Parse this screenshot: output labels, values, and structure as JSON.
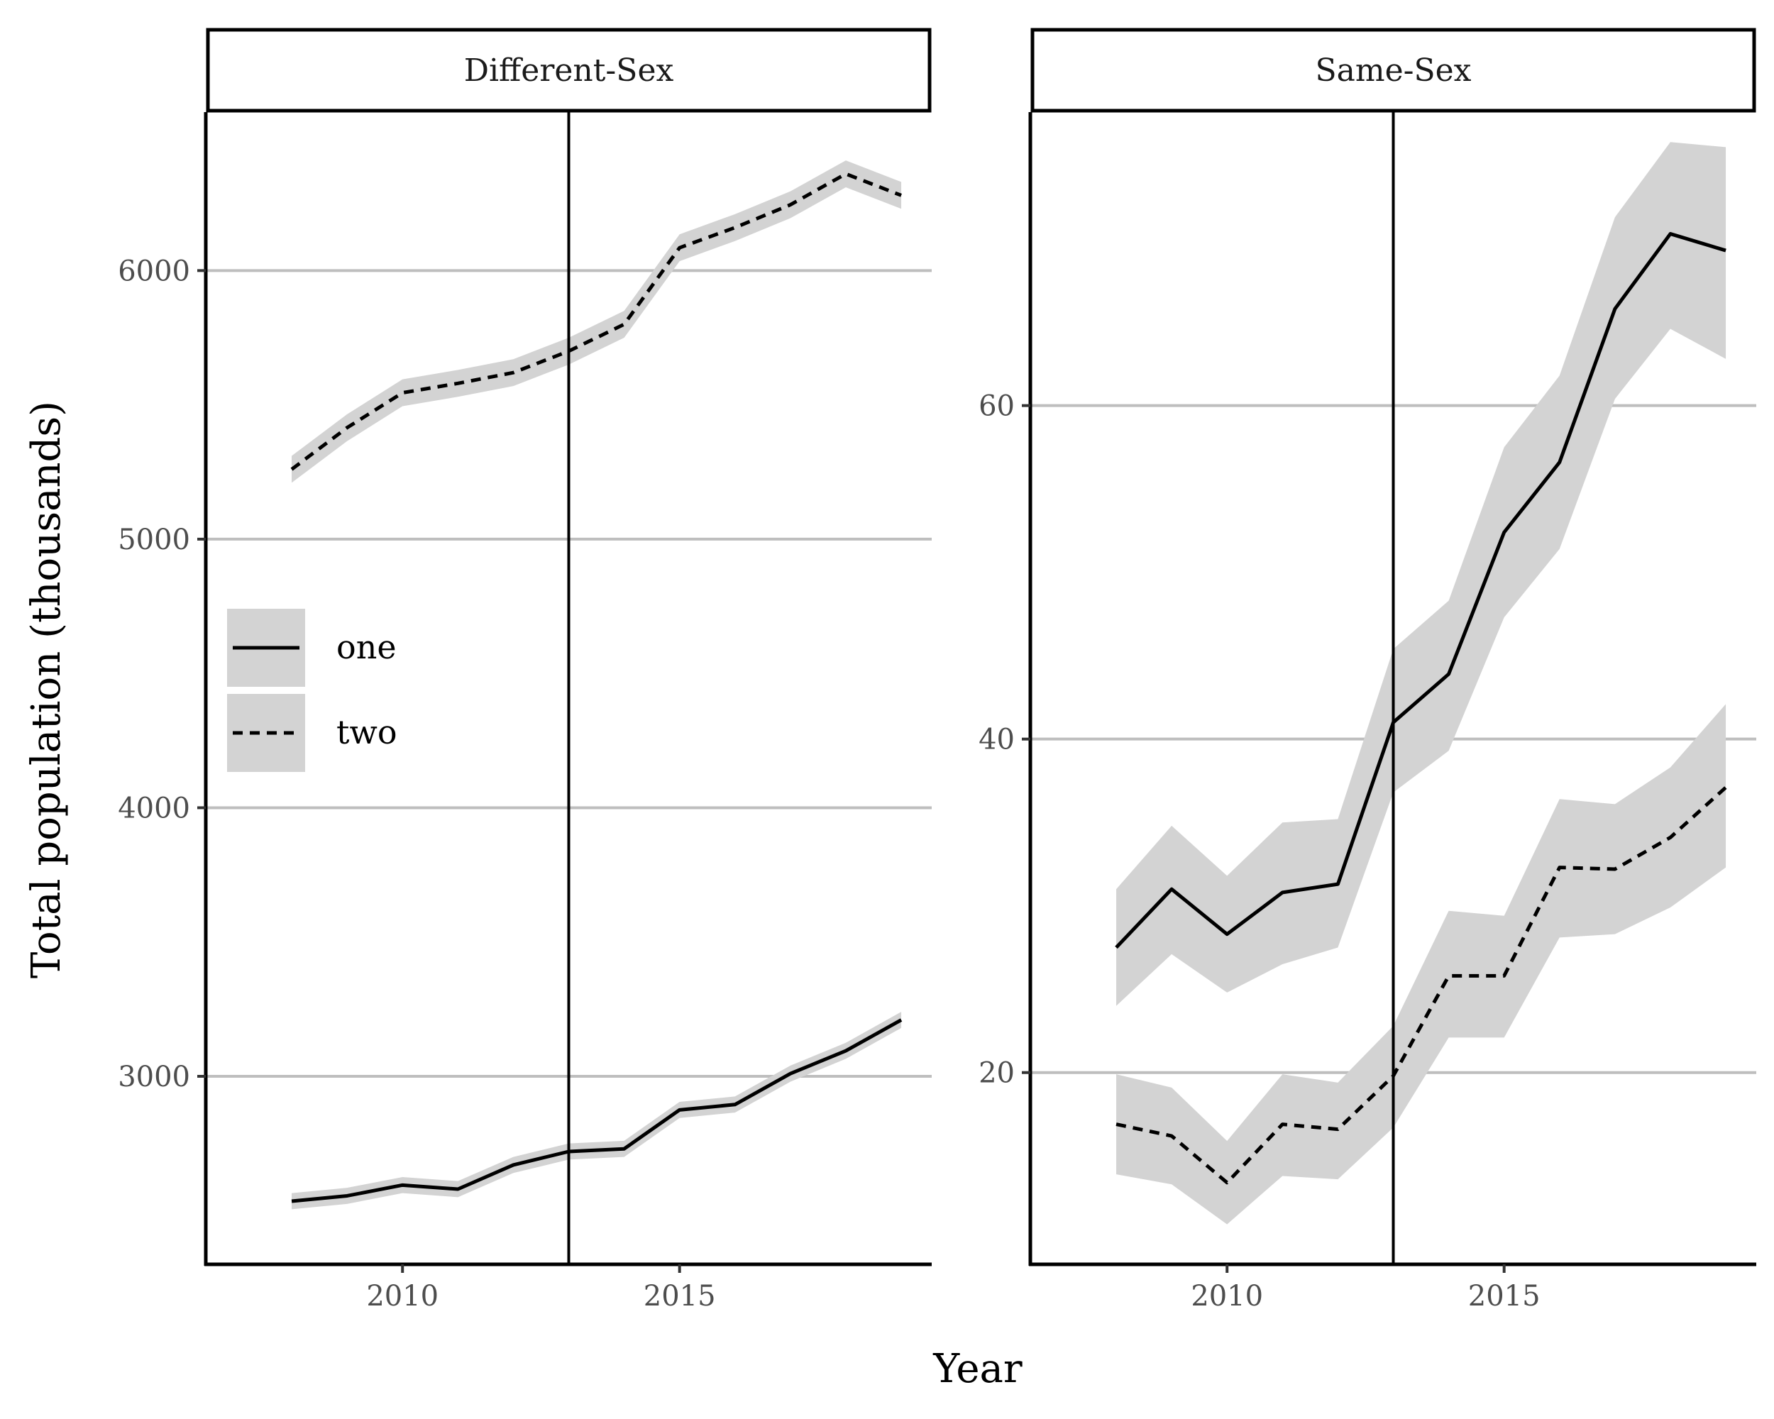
{
  "chart_data": {
    "type": "line",
    "xlabel": "Year",
    "ylabel": "Total population (thousands)",
    "reference_line_x": 2013,
    "grid": {
      "horizontal_major": true,
      "vertical": false
    },
    "band_color": "#d3d3d3",
    "line_color": "#000000",
    "legend": {
      "placement": "inside-left",
      "entries": [
        {
          "label": "one",
          "linetype": "solid"
        },
        {
          "label": "two",
          "linetype": "dashed"
        }
      ]
    },
    "panels": [
      {
        "strip": "Different-Sex",
        "xlim": [
          2006.45,
          2019.55
        ],
        "ylim": [
          2300,
          6590
        ],
        "x_ticks": [
          2010,
          2015
        ],
        "x_tick_labels": [
          "2010",
          "2015"
        ],
        "y_ticks": [
          3000,
          4000,
          5000,
          6000
        ],
        "y_tick_labels": [
          "3000",
          "4000",
          "5000",
          "6000"
        ],
        "x": [
          2008,
          2009,
          2010,
          2011,
          2012,
          2013,
          2014,
          2015,
          2016,
          2017,
          2018,
          2019
        ],
        "series": [
          {
            "name": "one",
            "linetype": "solid",
            "values": [
              2535,
              2555,
              2595,
              2580,
              2670,
              2720,
              2730,
              2875,
              2895,
              3010,
              3095,
              3210
            ],
            "lower": [
              2505,
              2525,
              2565,
              2550,
              2640,
              2690,
              2700,
              2845,
              2865,
              2980,
              3065,
              3180
            ],
            "upper": [
              2565,
              2585,
              2625,
              2610,
              2700,
              2750,
              2760,
              2905,
              2925,
              3040,
              3125,
              3240
            ]
          },
          {
            "name": "two",
            "linetype": "dashed",
            "values": [
              5260,
              5415,
              5545,
              5580,
              5620,
              5700,
              5800,
              6085,
              6160,
              6245,
              6360,
              6280
            ],
            "lower": [
              5210,
              5365,
              5495,
              5530,
              5570,
              5650,
              5750,
              6035,
              6110,
              6195,
              6310,
              6230
            ],
            "upper": [
              5310,
              5465,
              5595,
              5630,
              5670,
              5750,
              5850,
              6135,
              6210,
              6295,
              6410,
              6330
            ]
          }
        ]
      },
      {
        "strip": "Same-Sex",
        "xlim": [
          2006.45,
          2019.55
        ],
        "ylim": [
          8.5,
          77.6
        ],
        "x_ticks": [
          2010,
          2015
        ],
        "x_tick_labels": [
          "2010",
          "2015"
        ],
        "y_ticks": [
          20,
          40,
          60
        ],
        "y_tick_labels": [
          "20",
          "40",
          "60"
        ],
        "x": [
          2008,
          2009,
          2010,
          2011,
          2012,
          2013,
          2014,
          2015,
          2016,
          2017,
          2018,
          2019
        ],
        "series": [
          {
            "name": "one",
            "linetype": "solid",
            "values": [
              27.5,
              31.0,
              28.3,
              30.8,
              31.3,
              41.0,
              43.9,
              52.4,
              56.6,
              65.8,
              70.3,
              69.3
            ],
            "lower": [
              24.0,
              27.1,
              24.8,
              26.5,
              27.5,
              36.8,
              39.3,
              47.3,
              51.4,
              60.4,
              64.6,
              62.8
            ],
            "upper": [
              31.0,
              34.8,
              31.8,
              35.0,
              35.2,
              45.4,
              48.3,
              57.5,
              61.8,
              71.3,
              75.8,
              75.5
            ]
          },
          {
            "name": "two",
            "linetype": "dashed",
            "values": [
              16.9,
              16.2,
              13.4,
              16.9,
              16.6,
              19.8,
              25.8,
              25.8,
              32.3,
              32.2,
              34.1,
              37.1
            ],
            "lower": [
              13.9,
              13.3,
              10.9,
              13.8,
              13.6,
              16.7,
              22.1,
              22.1,
              28.1,
              28.3,
              29.9,
              32.3
            ],
            "upper": [
              19.9,
              19.1,
              15.9,
              19.9,
              19.4,
              22.8,
              29.7,
              29.4,
              36.4,
              36.1,
              38.3,
              42.1
            ]
          }
        ]
      }
    ]
  }
}
